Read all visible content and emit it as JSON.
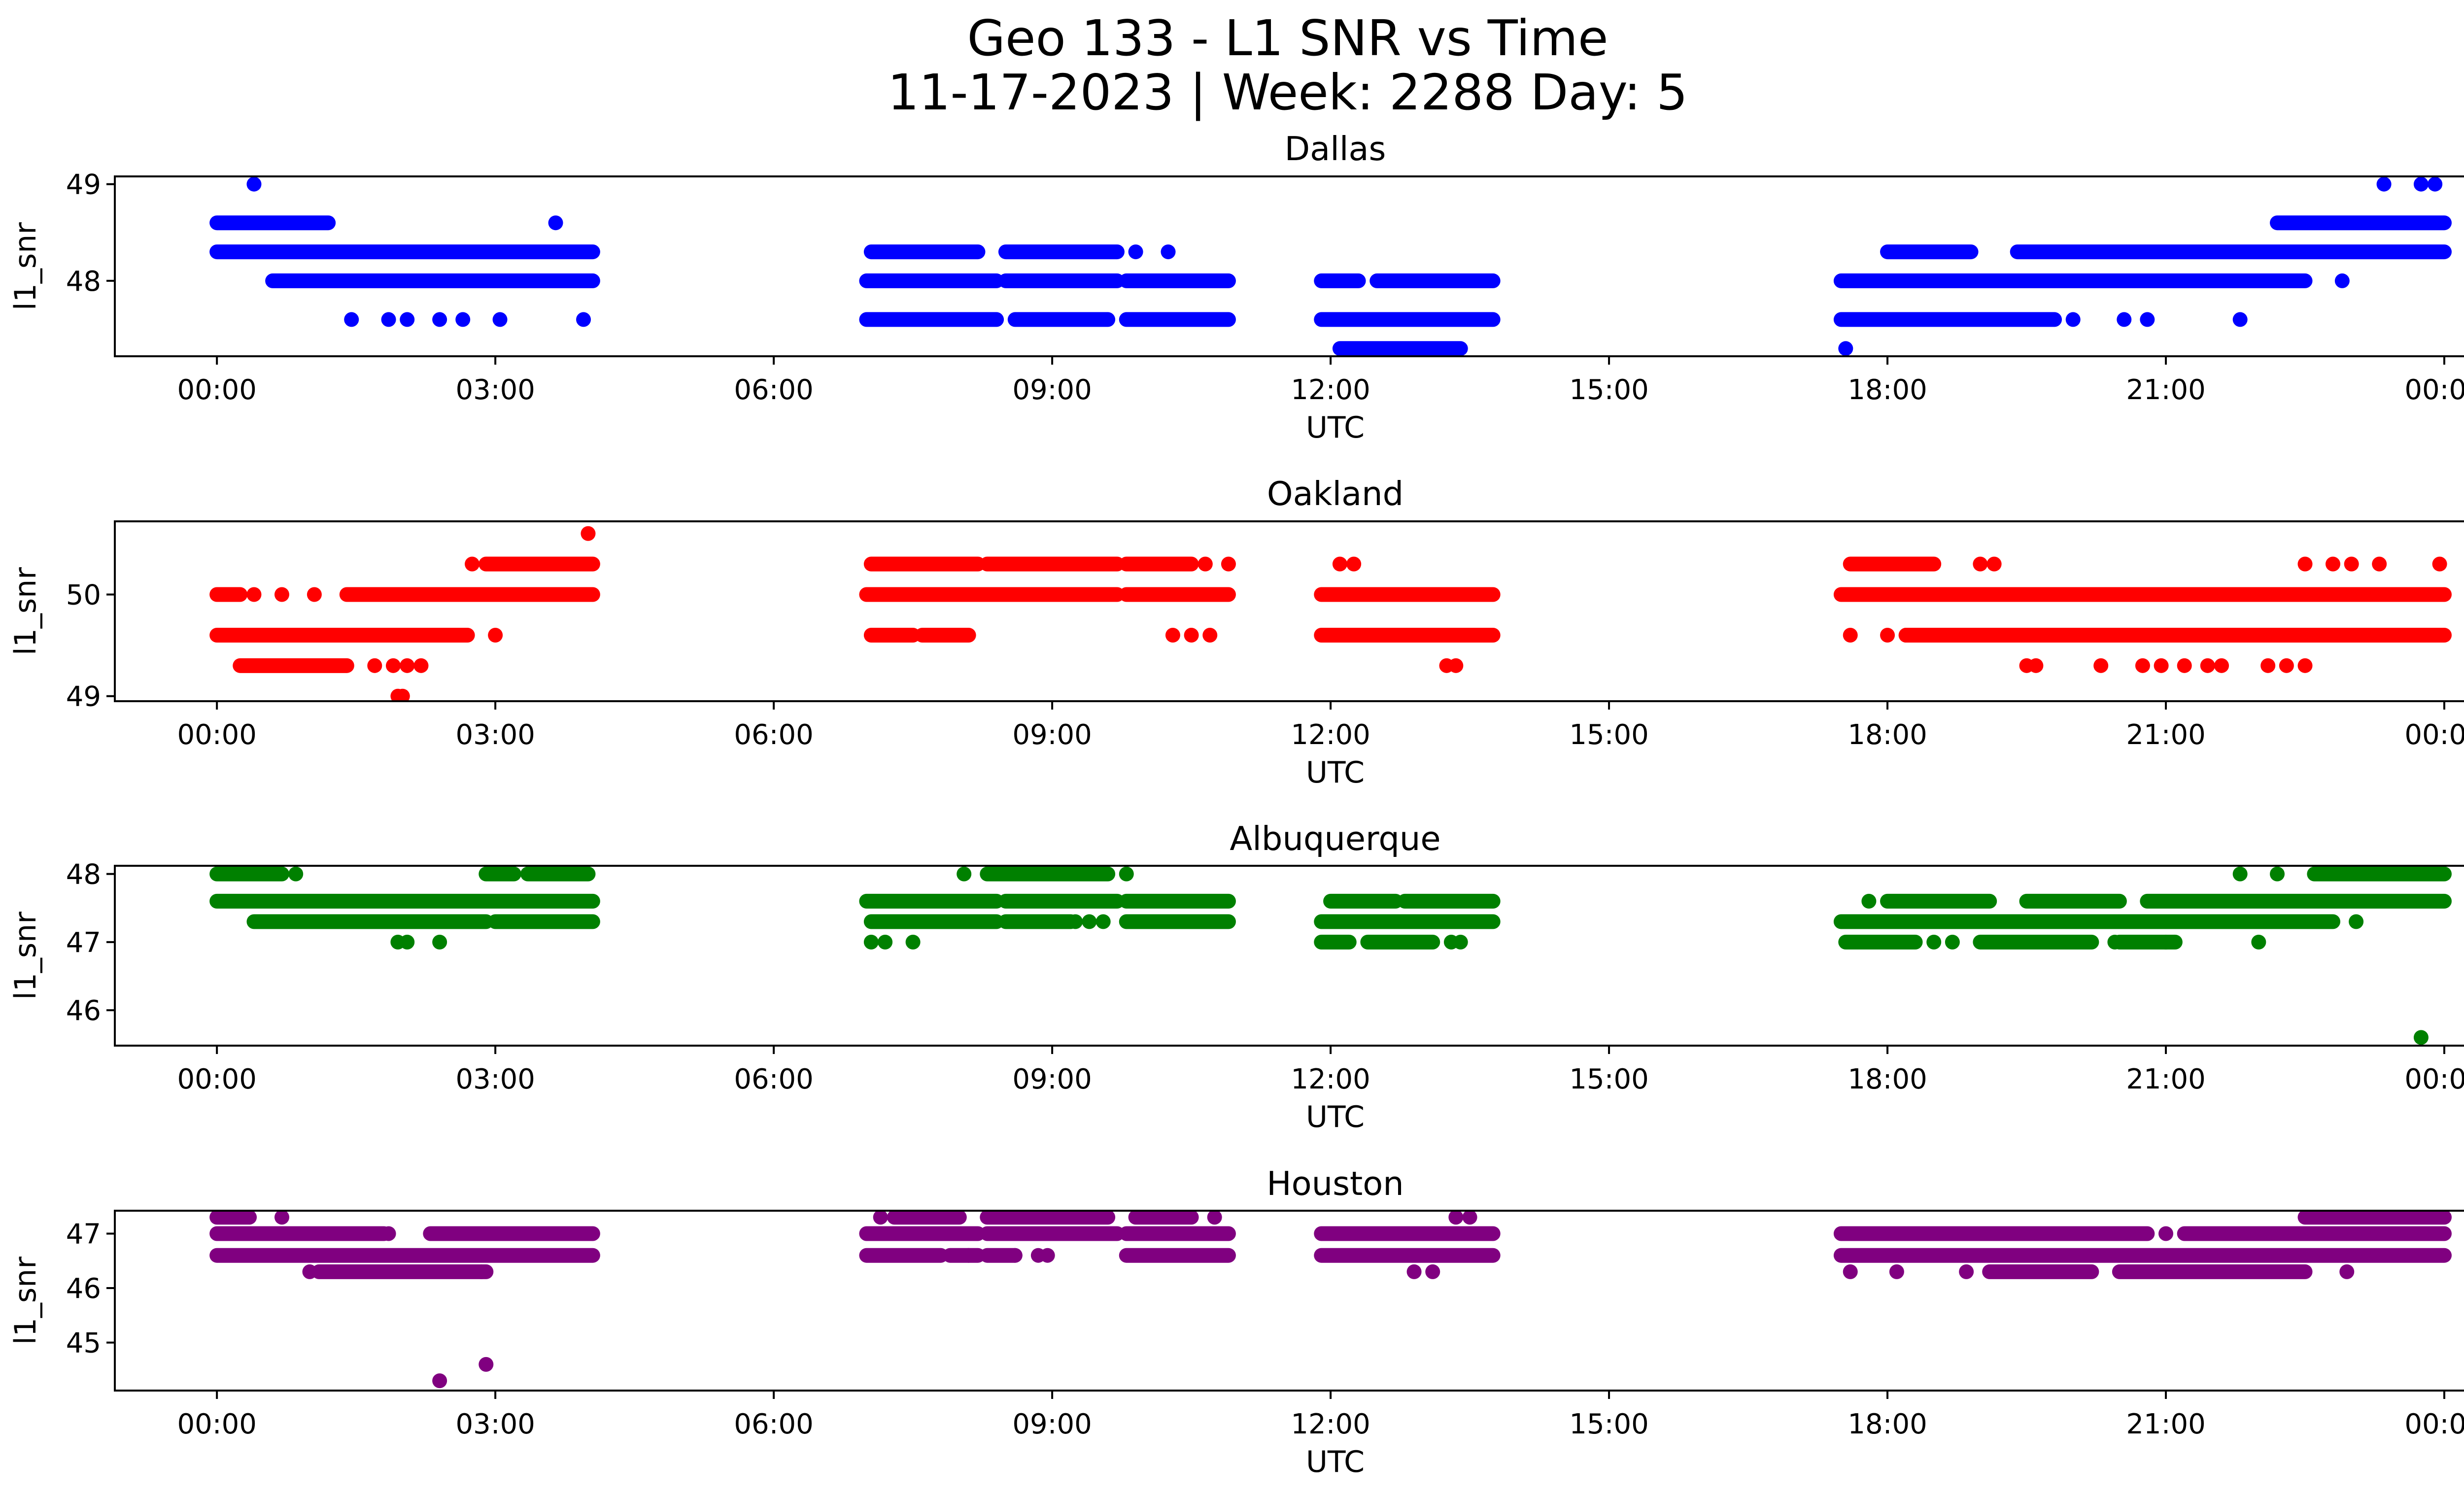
{
  "chart_data": {
    "type": "scatter",
    "title_line1": "Geo 133 - L1 SNR vs Time",
    "title_line2": "11-17-2023 | Week: 2288 Day: 5",
    "x_tick_labels": [
      "00:00",
      "03:00",
      "06:00",
      "09:00",
      "12:00",
      "15:00",
      "18:00",
      "21:00",
      "00:00"
    ],
    "x_tick_hours": [
      0,
      3,
      6,
      9,
      12,
      15,
      18,
      21,
      24
    ],
    "x_range_hours": [
      -1.1,
      25.2
    ],
    "panels": [
      {
        "title": "Dallas",
        "xlabel": "UTC",
        "ylabel": "l1_snr",
        "color": "#0000ff",
        "ylim": [
          47.22,
          49.08
        ],
        "yticks": [
          48,
          49
        ],
        "bands": [
          {
            "y": 48.6,
            "ranges": [
              [
                0.0,
                1.2
              ],
              [
                22.2,
                24.0
              ]
            ]
          },
          {
            "y": 48.3,
            "ranges": [
              [
                0.0,
                4.05
              ],
              [
                7.05,
                8.2
              ],
              [
                8.5,
                9.7
              ],
              [
                18.0,
                18.9
              ],
              [
                19.4,
                24.0
              ]
            ]
          },
          {
            "y": 48.0,
            "ranges": [
              [
                0.6,
                4.05
              ],
              [
                7.0,
                8.4
              ],
              [
                8.5,
                9.7
              ],
              [
                9.8,
                10.9
              ],
              [
                11.9,
                12.3
              ],
              [
                12.5,
                13.75
              ],
              [
                17.5,
                22.5
              ]
            ]
          },
          {
            "y": 47.6,
            "ranges": [
              [
                7.0,
                8.4
              ],
              [
                8.6,
                9.6
              ],
              [
                9.8,
                10.9
              ],
              [
                11.9,
                13.75
              ],
              [
                17.5,
                19.8
              ]
            ]
          },
          {
            "y": 47.3,
            "ranges": [
              [
                12.1,
                13.4
              ]
            ]
          }
        ],
        "points": [
          [
            0.4,
            49.0
          ],
          [
            23.35,
            49.0
          ],
          [
            23.75,
            49.0
          ],
          [
            23.9,
            49.0
          ],
          [
            3.65,
            48.6
          ],
          [
            9.9,
            48.3
          ],
          [
            10.25,
            48.3
          ],
          [
            22.9,
            48.0
          ],
          [
            1.45,
            47.6
          ],
          [
            1.85,
            47.6
          ],
          [
            2.05,
            47.6
          ],
          [
            2.4,
            47.6
          ],
          [
            2.65,
            47.6
          ],
          [
            3.05,
            47.6
          ],
          [
            3.95,
            47.6
          ],
          [
            20.0,
            47.6
          ],
          [
            20.55,
            47.6
          ],
          [
            20.8,
            47.6
          ],
          [
            21.8,
            47.6
          ],
          [
            17.55,
            47.3
          ]
        ]
      },
      {
        "title": "Oakland",
        "xlabel": "UTC",
        "ylabel": "l1_snr",
        "color": "#ff0000",
        "ylim": [
          48.95,
          50.72
        ],
        "yticks": [
          49,
          50
        ],
        "bands": [
          {
            "y": 50.3,
            "ranges": [
              [
                2.9,
                4.05
              ],
              [
                7.05,
                8.2
              ],
              [
                8.3,
                9.7
              ],
              [
                9.8,
                10.5
              ],
              [
                17.6,
                18.5
              ]
            ]
          },
          {
            "y": 50.0,
            "ranges": [
              [
                0.0,
                0.25
              ],
              [
                1.4,
                4.05
              ],
              [
                7.0,
                8.4
              ],
              [
                8.3,
                9.7
              ],
              [
                9.8,
                10.9
              ],
              [
                11.9,
                13.75
              ],
              [
                17.5,
                24.0
              ]
            ]
          },
          {
            "y": 49.6,
            "ranges": [
              [
                0.0,
                2.7
              ],
              [
                7.05,
                7.5
              ],
              [
                7.6,
                8.1
              ],
              [
                11.9,
                13.75
              ],
              [
                18.2,
                24.0
              ]
            ]
          },
          {
            "y": 49.3,
            "ranges": [
              [
                0.25,
                1.4
              ]
            ]
          }
        ],
        "points": [
          [
            4.0,
            50.6
          ],
          [
            2.75,
            50.3
          ],
          [
            10.65,
            50.3
          ],
          [
            10.9,
            50.3
          ],
          [
            12.1,
            50.3
          ],
          [
            12.25,
            50.3
          ],
          [
            19.0,
            50.3
          ],
          [
            19.15,
            50.3
          ],
          [
            22.5,
            50.3
          ],
          [
            22.8,
            50.3
          ],
          [
            23.0,
            50.3
          ],
          [
            23.3,
            50.3
          ],
          [
            23.95,
            50.3
          ],
          [
            0.4,
            50.0
          ],
          [
            0.7,
            50.0
          ],
          [
            1.05,
            50.0
          ],
          [
            3.0,
            49.6
          ],
          [
            10.3,
            49.6
          ],
          [
            10.5,
            49.6
          ],
          [
            10.7,
            49.6
          ],
          [
            17.6,
            49.6
          ],
          [
            18.0,
            49.6
          ],
          [
            18.2,
            49.6
          ],
          [
            1.7,
            49.3
          ],
          [
            1.9,
            49.3
          ],
          [
            2.05,
            49.3
          ],
          [
            2.2,
            49.3
          ],
          [
            13.25,
            49.3
          ],
          [
            13.35,
            49.3
          ],
          [
            19.5,
            49.3
          ],
          [
            19.6,
            49.3
          ],
          [
            20.3,
            49.3
          ],
          [
            20.75,
            49.3
          ],
          [
            20.95,
            49.3
          ],
          [
            21.2,
            49.3
          ],
          [
            21.45,
            49.3
          ],
          [
            21.6,
            49.3
          ],
          [
            22.1,
            49.3
          ],
          [
            22.3,
            49.3
          ],
          [
            22.5,
            49.3
          ],
          [
            1.95,
            49.0
          ],
          [
            2.0,
            49.0
          ]
        ]
      },
      {
        "title": "Albuquerque",
        "xlabel": "UTC",
        "ylabel": "l1_snr",
        "color": "#008000",
        "ylim": [
          45.48,
          48.12
        ],
        "yticks": [
          46,
          47,
          48
        ],
        "bands": [
          {
            "y": 48.0,
            "ranges": [
              [
                0.0,
                0.7
              ],
              [
                2.9,
                3.2
              ],
              [
                3.35,
                4.0
              ],
              [
                8.3,
                9.6
              ],
              [
                22.6,
                24.0
              ]
            ]
          },
          {
            "y": 47.6,
            "ranges": [
              [
                0.0,
                4.05
              ],
              [
                7.0,
                8.4
              ],
              [
                8.5,
                9.7
              ],
              [
                9.8,
                10.9
              ],
              [
                12.0,
                12.7
              ],
              [
                12.8,
                13.75
              ],
              [
                18.0,
                19.1
              ],
              [
                19.5,
                20.5
              ],
              [
                20.8,
                24.0
              ]
            ]
          },
          {
            "y": 47.3,
            "ranges": [
              [
                0.4,
                2.9
              ],
              [
                3.0,
                4.05
              ],
              [
                7.05,
                8.4
              ],
              [
                8.5,
                9.2
              ],
              [
                9.8,
                10.9
              ],
              [
                11.9,
                13.75
              ],
              [
                17.5,
                22.8
              ]
            ]
          },
          {
            "y": 47.0,
            "ranges": [
              [
                11.9,
                12.2
              ],
              [
                12.4,
                13.1
              ],
              [
                17.55,
                18.3
              ],
              [
                19.0,
                20.2
              ],
              [
                20.5,
                21.1
              ]
            ]
          }
        ],
        "points": [
          [
            8.05,
            48.0
          ],
          [
            9.8,
            48.0
          ],
          [
            21.8,
            48.0
          ],
          [
            22.2,
            48.0
          ],
          [
            0.85,
            48.0
          ],
          [
            17.8,
            47.6
          ],
          [
            9.25,
            47.3
          ],
          [
            9.4,
            47.3
          ],
          [
            9.55,
            47.3
          ],
          [
            23.05,
            47.3
          ],
          [
            1.95,
            47.0
          ],
          [
            2.05,
            47.0
          ],
          [
            2.4,
            47.0
          ],
          [
            7.05,
            47.0
          ],
          [
            7.2,
            47.0
          ],
          [
            7.5,
            47.0
          ],
          [
            13.3,
            47.0
          ],
          [
            13.4,
            47.0
          ],
          [
            18.5,
            47.0
          ],
          [
            18.7,
            47.0
          ],
          [
            20.45,
            47.0
          ],
          [
            21.0,
            47.0
          ],
          [
            22.0,
            47.0
          ],
          [
            23.75,
            45.6
          ]
        ]
      },
      {
        "title": "Houston",
        "xlabel": "UTC",
        "ylabel": "l1_snr",
        "color": "#800080",
        "ylim": [
          44.12,
          47.42
        ],
        "yticks": [
          45,
          46,
          47
        ],
        "bands": [
          {
            "y": 47.3,
            "ranges": [
              [
                0.0,
                0.35
              ],
              [
                7.3,
                8.0
              ],
              [
                8.3,
                9.6
              ],
              [
                9.9,
                10.5
              ],
              [
                22.5,
                24.0
              ]
            ]
          },
          {
            "y": 47.0,
            "ranges": [
              [
                0.0,
                1.8
              ],
              [
                2.3,
                4.05
              ],
              [
                7.0,
                8.2
              ],
              [
                8.3,
                9.7
              ],
              [
                9.8,
                10.9
              ],
              [
                11.9,
                13.75
              ],
              [
                17.5,
                20.8
              ],
              [
                21.2,
                24.0
              ]
            ]
          },
          {
            "y": 46.6,
            "ranges": [
              [
                0.0,
                4.05
              ],
              [
                7.0,
                7.8
              ],
              [
                7.9,
                8.2
              ],
              [
                8.3,
                8.6
              ],
              [
                9.8,
                10.9
              ],
              [
                11.9,
                13.75
              ],
              [
                17.5,
                24.0
              ]
            ]
          },
          {
            "y": 46.3,
            "ranges": [
              [
                1.1,
                2.9
              ],
              [
                19.1,
                20.2
              ],
              [
                20.5,
                22.5
              ]
            ]
          }
        ],
        "points": [
          [
            0.7,
            47.3
          ],
          [
            7.15,
            47.3
          ],
          [
            10.75,
            47.3
          ],
          [
            13.35,
            47.3
          ],
          [
            13.5,
            47.3
          ],
          [
            1.85,
            47.0
          ],
          [
            21.0,
            47.0
          ],
          [
            8.1,
            46.6
          ],
          [
            8.6,
            46.6
          ],
          [
            8.85,
            46.6
          ],
          [
            8.95,
            46.6
          ],
          [
            1.0,
            46.3
          ],
          [
            2.85,
            46.3
          ],
          [
            12.9,
            46.3
          ],
          [
            13.1,
            46.3
          ],
          [
            17.6,
            46.3
          ],
          [
            18.1,
            46.3
          ],
          [
            18.85,
            46.3
          ],
          [
            22.95,
            46.3
          ],
          [
            2.9,
            44.6
          ],
          [
            2.4,
            44.3
          ]
        ]
      }
    ]
  }
}
